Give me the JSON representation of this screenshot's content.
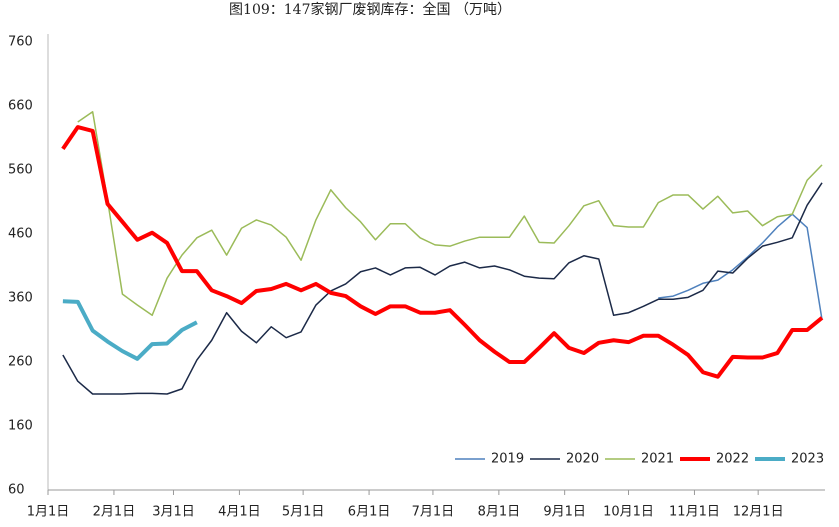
{
  "chart_data": {
    "type": "line",
    "title": "图109：147家钢厂废钢库存：全国 （万吨）",
    "x": [
      1,
      2,
      3,
      4,
      5,
      6,
      7,
      8,
      9,
      10,
      11,
      12,
      13,
      14,
      15,
      16,
      17,
      18,
      19,
      20,
      21,
      22,
      23,
      24,
      25,
      26,
      27,
      28,
      29,
      30,
      31,
      32,
      33,
      34,
      35,
      36,
      37,
      38,
      39,
      40,
      41,
      42,
      43,
      44,
      45,
      46,
      47,
      48,
      49,
      50,
      51,
      52
    ],
    "xlim": [
      0,
      52.2
    ],
    "xticks": [
      {
        "value": 0,
        "label": "1月1日"
      },
      {
        "value": 4.43,
        "label": "2月1日"
      },
      {
        "value": 8.43,
        "label": "3月1日"
      },
      {
        "value": 12.86,
        "label": "4月1日"
      },
      {
        "value": 17.14,
        "label": "5月1日"
      },
      {
        "value": 21.57,
        "label": "6月1日"
      },
      {
        "value": 25.86,
        "label": "7月1日"
      },
      {
        "value": 30.29,
        "label": "8月1日"
      },
      {
        "value": 34.71,
        "label": "9月1日"
      },
      {
        "value": 39,
        "label": "10月1日"
      },
      {
        "value": 43.43,
        "label": "11月1日"
      },
      {
        "value": 47.71,
        "label": "12月1日"
      }
    ],
    "ylim": [
      60,
      760
    ],
    "yticks": [
      60,
      160,
      260,
      360,
      460,
      560,
      660,
      760
    ],
    "legend": "lower right",
    "series": [
      {
        "name": "2019",
        "color": "#4f81bd",
        "width": 1.5,
        "values": [
          null,
          null,
          null,
          null,
          null,
          null,
          null,
          null,
          null,
          null,
          null,
          null,
          null,
          null,
          null,
          null,
          null,
          null,
          null,
          null,
          null,
          null,
          null,
          null,
          null,
          null,
          null,
          null,
          null,
          null,
          null,
          null,
          null,
          null,
          null,
          null,
          null,
          null,
          null,
          null,
          360,
          363,
          372,
          383,
          388,
          404,
          424,
          446,
          471,
          491,
          470,
          326
        ]
      },
      {
        "name": "2020",
        "color": "#1c2a48",
        "width": 1.5,
        "values": [
          271,
          230,
          210,
          210,
          210,
          211,
          211,
          210,
          218,
          263,
          294,
          337,
          308,
          290,
          315,
          298,
          307,
          349,
          371,
          382,
          401,
          407,
          396,
          407,
          408,
          396,
          410,
          416,
          407,
          410,
          404,
          394,
          391,
          390,
          415,
          426,
          421,
          333,
          337,
          347,
          358,
          358,
          361,
          372,
          402,
          399,
          422,
          441,
          447,
          454,
          505,
          540
        ]
      },
      {
        "name": "2021",
        "color": "#9bbb59",
        "width": 1.5,
        "values": [
          null,
          635,
          651,
          513,
          366,
          349,
          333,
          391,
          427,
          454,
          466,
          427,
          469,
          482,
          474,
          455,
          419,
          482,
          529,
          501,
          479,
          451,
          476,
          476,
          454,
          443,
          441,
          449,
          455,
          455,
          455,
          488,
          447,
          446,
          473,
          504,
          512,
          473,
          471,
          471,
          509,
          521,
          521,
          499,
          519,
          493,
          496,
          473,
          487,
          491,
          544,
          568
        ]
      },
      {
        "name": "2022",
        "color": "#ff0000",
        "width": 4,
        "values": [
          593,
          627,
          621,
          507,
          479,
          451,
          462,
          446,
          402,
          402,
          372,
          363,
          352,
          371,
          374,
          382,
          372,
          382,
          368,
          363,
          347,
          335,
          347,
          347,
          337,
          337,
          341,
          318,
          294,
          276,
          260,
          260,
          282,
          305,
          282,
          274,
          290,
          294,
          291,
          301,
          301,
          287,
          271,
          244,
          237,
          268,
          267,
          267,
          274,
          310,
          310,
          329
        ]
      },
      {
        "name": "2023",
        "color": "#4bacc6",
        "width": 4,
        "values": [
          355,
          354,
          309,
          292,
          277,
          265,
          288,
          289,
          310,
          322,
          null,
          null,
          null,
          null,
          null,
          null,
          null,
          null,
          null,
          null,
          null,
          null,
          null,
          null,
          null,
          null,
          null,
          null,
          null,
          null,
          null,
          null,
          null,
          null,
          null,
          null,
          null,
          null,
          null,
          null,
          null,
          null,
          null,
          null,
          null,
          null,
          null,
          null,
          null,
          null,
          null,
          null
        ]
      }
    ]
  }
}
